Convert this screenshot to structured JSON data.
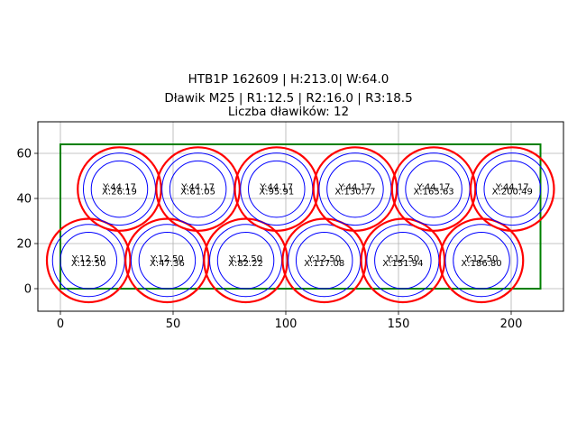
{
  "chart_data": {
    "type": "scatter",
    "title": [
      "HTB1P 162609 | H:213.0| W:64.0",
      "Dławik M25 | R1:12.5 | R2:16.0 | R3:18.5",
      "Liczba dławików: 12"
    ],
    "xlabel": "",
    "ylabel": "",
    "xlim": [
      -10,
      223.2
    ],
    "ylim": [
      -10,
      74
    ],
    "xticks": [
      0,
      50,
      100,
      150,
      200
    ],
    "yticks": [
      0,
      20,
      40,
      60
    ],
    "grid": true,
    "boundary_rect": {
      "x": 0,
      "y": 0,
      "width": 213.0,
      "height": 64.0,
      "color": "#008000"
    },
    "radii": {
      "r1": 12.5,
      "r2": 16.0,
      "r3": 18.5
    },
    "colors": {
      "r1": "#0000ff",
      "r2": "#0000ff",
      "r3": "#ff0000"
    },
    "circles": [
      {
        "x": 12.5,
        "y": 12.5,
        "label_x": "X:12.50",
        "label_y": "Y:12.50"
      },
      {
        "x": 47.36,
        "y": 12.5,
        "label_x": "X:47.36",
        "label_y": "Y:12.50"
      },
      {
        "x": 82.22,
        "y": 12.5,
        "label_x": "X:82.22",
        "label_y": "Y:12.50"
      },
      {
        "x": 117.08,
        "y": 12.5,
        "label_x": "X:117.08",
        "label_y": "Y:12.50"
      },
      {
        "x": 151.94,
        "y": 12.5,
        "label_x": "X:151.94",
        "label_y": "Y:12.50"
      },
      {
        "x": 186.8,
        "y": 12.5,
        "label_x": "X:186.80",
        "label_y": "Y:12.50"
      },
      {
        "x": 26.19,
        "y": 44.17,
        "label_x": "X:26.19",
        "label_y": "Y:44.17"
      },
      {
        "x": 61.05,
        "y": 44.17,
        "label_x": "X:61.05",
        "label_y": "Y:44.17"
      },
      {
        "x": 95.91,
        "y": 44.17,
        "label_x": "X:95.91",
        "label_y": "Y:44.17"
      },
      {
        "x": 130.77,
        "y": 44.17,
        "label_x": "X:130.77",
        "label_y": "Y:44.17"
      },
      {
        "x": 165.63,
        "y": 44.17,
        "label_x": "X:165.63",
        "label_y": "Y:44.17"
      },
      {
        "x": 200.49,
        "y": 44.17,
        "label_x": "X:200.49",
        "label_y": "Y:44.17"
      }
    ]
  }
}
